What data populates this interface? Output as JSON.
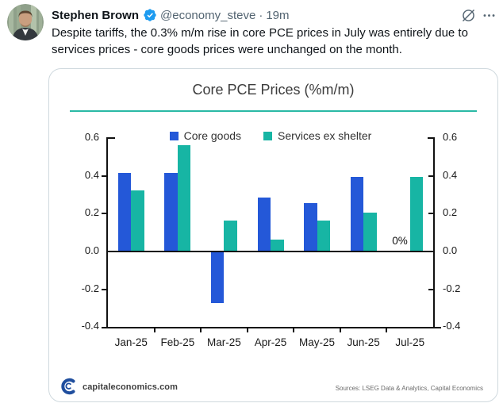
{
  "tweet": {
    "author": "Stephen Brown",
    "handle": "@economy_steve",
    "separator": "·",
    "timestamp": "19m",
    "body": "Despite tariffs, the 0.3% m/m rise in core PCE prices in July was entirely due to services prices - core goods prices were unchanged on the month.",
    "verified_color": "#1d9bf0",
    "icon_color": "#536471"
  },
  "chart_data": {
    "type": "bar",
    "title": "Core PCE Prices (%m/m)",
    "categories": [
      "Jan-25",
      "Feb-25",
      "Mar-25",
      "Apr-25",
      "May-25",
      "Jun-25",
      "Jul-25"
    ],
    "series": [
      {
        "name": "Core goods",
        "color": "#2458d8",
        "values": [
          0.41,
          0.41,
          -0.27,
          0.28,
          0.25,
          0.39,
          0.0
        ]
      },
      {
        "name": "Services ex shelter",
        "color": "#17b5a4",
        "values": [
          0.32,
          0.56,
          0.16,
          0.06,
          0.16,
          0.2,
          0.39
        ]
      }
    ],
    "ylim": [
      -0.4,
      0.6
    ],
    "ytick_labels": [
      "0.6",
      "0.4",
      "0.2",
      "0.0",
      "-0.2",
      "-0.4"
    ],
    "dual_y_axis": true,
    "grid": false,
    "legend_position": "top-center",
    "annotation": {
      "text": "0%",
      "category": "Jul-25",
      "series": "Core goods"
    },
    "accent_rule_color": "#2ab9a5"
  },
  "chart_footer": {
    "logo_text": "capitaleconomics.com",
    "sources": "Sources: LSEG Data & Analytics, Capital Economics"
  }
}
